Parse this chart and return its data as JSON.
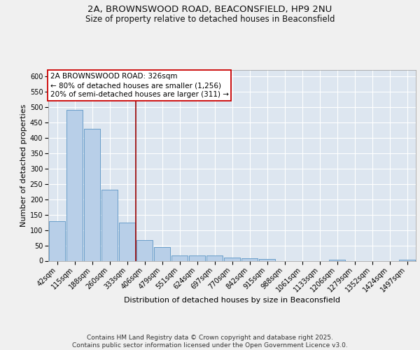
{
  "title_line1": "2A, BROWNSWOOD ROAD, BEACONSFIELD, HP9 2NU",
  "title_line2": "Size of property relative to detached houses in Beaconsfield",
  "xlabel": "Distribution of detached houses by size in Beaconsfield",
  "ylabel": "Number of detached properties",
  "bar_labels": [
    "42sqm",
    "115sqm",
    "188sqm",
    "260sqm",
    "333sqm",
    "406sqm",
    "479sqm",
    "551sqm",
    "624sqm",
    "697sqm",
    "770sqm",
    "842sqm",
    "915sqm",
    "988sqm",
    "1061sqm",
    "1133sqm",
    "1206sqm",
    "1279sqm",
    "1352sqm",
    "1424sqm",
    "1497sqm"
  ],
  "bar_values": [
    128,
    490,
    430,
    230,
    123,
    68,
    44,
    16,
    16,
    16,
    11,
    7,
    5,
    0,
    0,
    0,
    4,
    0,
    0,
    0,
    4
  ],
  "bar_color": "#b8cfe8",
  "bar_edge_color": "#6a9fca",
  "background_color": "#dde6f0",
  "grid_color": "#ffffff",
  "vline_color": "#990000",
  "vline_xindex": 4.5,
  "annotation_text": "2A BROWNSWOOD ROAD: 326sqm\n← 80% of detached houses are smaller (1,256)\n20% of semi-detached houses are larger (311) →",
  "annotation_box_color": "#ffffff",
  "annotation_box_edge": "#cc0000",
  "ylim": [
    0,
    620
  ],
  "yticks": [
    0,
    50,
    100,
    150,
    200,
    250,
    300,
    350,
    400,
    450,
    500,
    550,
    600
  ],
  "footer_text": "Contains HM Land Registry data © Crown copyright and database right 2025.\nContains public sector information licensed under the Open Government Licence v3.0.",
  "title_fontsize": 9.5,
  "subtitle_fontsize": 8.5,
  "axis_label_fontsize": 8,
  "tick_fontsize": 7,
  "annotation_fontsize": 7.5,
  "footer_fontsize": 6.5
}
